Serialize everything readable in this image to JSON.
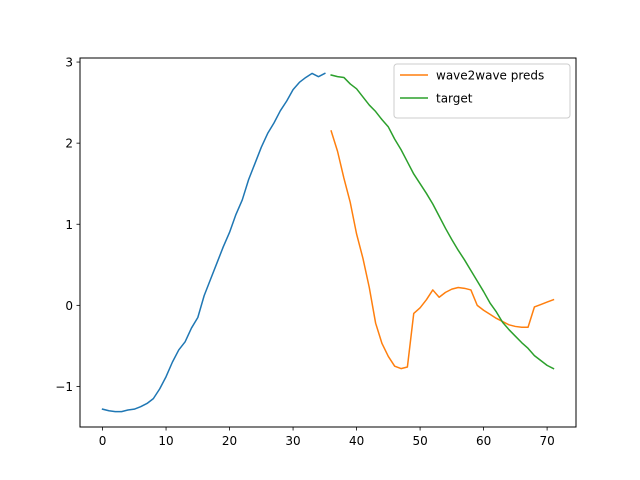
{
  "chart_data": {
    "type": "line",
    "xlim": [
      -3.55,
      74.55
    ],
    "ylim": [
      -1.5,
      3.05
    ],
    "x_ticks": [
      0,
      10,
      20,
      30,
      40,
      50,
      60,
      70
    ],
    "y_ticks": [
      -1,
      0,
      1,
      2,
      3
    ],
    "grid": false,
    "legend_position": "top-right",
    "series": [
      {
        "name": "",
        "color": "#1f77b4",
        "x": [
          0,
          1,
          2,
          3,
          4,
          5,
          6,
          7,
          8,
          9,
          10,
          11,
          12,
          13,
          14,
          15,
          16,
          17,
          18,
          19,
          20,
          21,
          22,
          23,
          24,
          25,
          26,
          27,
          28,
          29,
          30,
          31,
          32,
          33,
          34,
          35
        ],
        "y": [
          -1.28,
          -1.3,
          -1.31,
          -1.31,
          -1.29,
          -1.28,
          -1.25,
          -1.21,
          -1.15,
          -1.03,
          -0.88,
          -0.7,
          -0.55,
          -0.45,
          -0.28,
          -0.15,
          0.12,
          0.32,
          0.52,
          0.72,
          0.9,
          1.12,
          1.3,
          1.55,
          1.75,
          1.95,
          2.12,
          2.25,
          2.4,
          2.52,
          2.66,
          2.75,
          2.81,
          2.86,
          2.82,
          2.86
        ]
      },
      {
        "name": "wave2wave preds",
        "color": "#ff7f0e",
        "x": [
          36,
          37,
          38,
          39,
          40,
          41,
          42,
          43,
          44,
          45,
          46,
          47,
          48,
          49,
          50,
          51,
          52,
          53,
          54,
          55,
          56,
          57,
          58,
          59,
          60,
          61,
          62,
          63,
          64,
          65,
          66,
          67,
          68,
          69,
          70,
          71
        ],
        "y": [
          2.15,
          1.9,
          1.57,
          1.27,
          0.88,
          0.58,
          0.22,
          -0.22,
          -0.47,
          -0.63,
          -0.75,
          -0.78,
          -0.76,
          -0.1,
          -0.03,
          0.07,
          0.19,
          0.1,
          0.16,
          0.2,
          0.22,
          0.21,
          0.19,
          0.0,
          -0.06,
          -0.11,
          -0.16,
          -0.2,
          -0.24,
          -0.26,
          -0.27,
          -0.27,
          -0.02,
          0.01,
          0.04,
          0.07
        ]
      },
      {
        "name": "target",
        "color": "#2ca02c",
        "x": [
          36,
          37,
          38,
          39,
          40,
          41,
          42,
          43,
          44,
          45,
          46,
          47,
          48,
          49,
          50,
          51,
          52,
          53,
          54,
          55,
          56,
          57,
          58,
          59,
          60,
          61,
          62,
          63,
          64,
          65,
          66,
          67,
          68,
          69,
          70,
          71
        ],
        "y": [
          2.84,
          2.82,
          2.81,
          2.73,
          2.67,
          2.57,
          2.47,
          2.39,
          2.29,
          2.2,
          2.05,
          1.92,
          1.77,
          1.62,
          1.5,
          1.38,
          1.25,
          1.1,
          0.95,
          0.81,
          0.68,
          0.56,
          0.43,
          0.3,
          0.17,
          0.03,
          -0.08,
          -0.21,
          -0.3,
          -0.38,
          -0.46,
          -0.53,
          -0.62,
          -0.68,
          -0.74,
          -0.78
        ]
      }
    ]
  }
}
